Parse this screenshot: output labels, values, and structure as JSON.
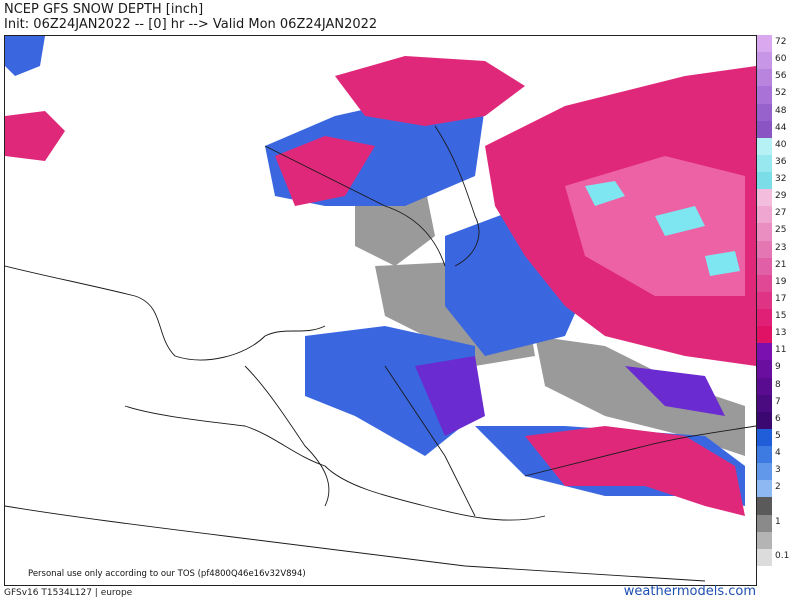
{
  "header": {
    "title": "NCEP GFS SNOW DEPTH [inch]",
    "subtitle": "Init: 06Z24JAN2022 -- [0] hr --> Valid Mon 06Z24JAN2022"
  },
  "map": {
    "region": "europe",
    "fill_colors": {
      "light_gray": "#d8d8d8",
      "gray": "#9a9a9a",
      "blue": "#3a66e0",
      "light_blue": "#7fb0f0",
      "purple": "#6a2bd0",
      "magenta": "#e0287a",
      "pink": "#f070b0",
      "cyan": "#7de6f0"
    }
  },
  "legend": {
    "items": [
      {
        "label": "72",
        "color": "#d9a8ee"
      },
      {
        "label": "60",
        "color": "#c896e6"
      },
      {
        "label": "56",
        "color": "#b884de"
      },
      {
        "label": "52",
        "color": "#a872d6"
      },
      {
        "label": "48",
        "color": "#9862cc"
      },
      {
        "label": "44",
        "color": "#8a55c2"
      },
      {
        "label": "40",
        "color": "#b6f2f5"
      },
      {
        "label": "36",
        "color": "#98e8ef"
      },
      {
        "label": "32",
        "color": "#7adde8"
      },
      {
        "label": "29",
        "color": "#f3bedd"
      },
      {
        "label": "27",
        "color": "#efa6d0"
      },
      {
        "label": "25",
        "color": "#ea8ec2"
      },
      {
        "label": "23",
        "color": "#e576b4"
      },
      {
        "label": "21",
        "color": "#e05fa6"
      },
      {
        "label": "19",
        "color": "#e04896"
      },
      {
        "label": "17",
        "color": "#df3386"
      },
      {
        "label": "15",
        "color": "#e02076"
      },
      {
        "label": "13",
        "color": "#e01266"
      },
      {
        "label": "11",
        "color": "#7a10b0"
      },
      {
        "label": "9",
        "color": "#6a0ea0"
      },
      {
        "label": "8",
        "color": "#5a0c90"
      },
      {
        "label": "7",
        "color": "#4a0a80"
      },
      {
        "label": "6",
        "color": "#3a0870"
      },
      {
        "label": "5",
        "color": "#1f5ed8"
      },
      {
        "label": "4",
        "color": "#3d7ae2"
      },
      {
        "label": "3",
        "color": "#6198ea"
      },
      {
        "label": "2",
        "color": "#8eb8f2"
      },
      {
        "label": "",
        "color": "#5a5a5a"
      },
      {
        "label": "1",
        "color": "#8a8a8a"
      },
      {
        "label": "",
        "color": "#b4b4b4"
      },
      {
        "label": "0.1",
        "color": "#dcdcdc"
      }
    ]
  },
  "footer": {
    "tos": "Personal use only according to our TOS (pf4800Q46e16v32V894)",
    "model": "GFSv16 T1534L127 | europe",
    "brand": "weathermodels.com"
  }
}
